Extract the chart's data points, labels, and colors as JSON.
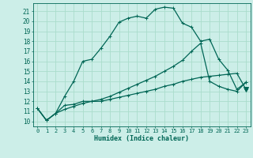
{
  "xlabel": "Humidex (Indice chaleur)",
  "bg_color": "#cceee8",
  "line_color": "#006655",
  "grid_color": "#aaddcc",
  "xlim": [
    -0.5,
    23.5
  ],
  "ylim": [
    9.5,
    21.8
  ],
  "xticks": [
    0,
    1,
    2,
    3,
    4,
    5,
    6,
    7,
    8,
    9,
    10,
    11,
    12,
    13,
    14,
    15,
    16,
    17,
    18,
    19,
    20,
    21,
    22,
    23
  ],
  "yticks": [
    10,
    11,
    12,
    13,
    14,
    15,
    16,
    17,
    18,
    19,
    20,
    21
  ],
  "curve1_x": [
    0,
    1,
    2,
    3,
    4,
    5,
    6,
    7,
    8,
    9,
    10,
    11,
    12,
    13,
    14,
    15,
    16,
    17,
    18,
    19,
    20,
    21,
    22,
    23
  ],
  "curve1_y": [
    11.3,
    10.1,
    10.8,
    12.5,
    14.0,
    16.0,
    16.2,
    17.3,
    18.5,
    19.9,
    20.3,
    20.5,
    20.3,
    21.2,
    21.4,
    21.3,
    19.8,
    19.4,
    18.0,
    18.2,
    16.2,
    15.1,
    13.2,
    13.9
  ],
  "curve2_x": [
    0,
    1,
    2,
    3,
    4,
    5,
    6,
    7,
    8,
    9,
    10,
    11,
    12,
    13,
    14,
    15,
    16,
    17,
    18,
    19,
    20,
    21,
    22,
    23
  ],
  "curve2_y": [
    11.3,
    10.1,
    10.8,
    11.6,
    11.7,
    12.0,
    12.0,
    12.0,
    12.2,
    12.4,
    12.6,
    12.8,
    13.0,
    13.2,
    13.5,
    13.7,
    14.0,
    14.2,
    14.4,
    14.5,
    14.6,
    14.7,
    14.8,
    13.2
  ],
  "curve3_x": [
    0,
    1,
    2,
    3,
    4,
    5,
    6,
    7,
    8,
    9,
    10,
    11,
    12,
    13,
    14,
    15,
    16,
    17,
    18,
    19,
    20,
    21,
    22,
    23
  ],
  "curve3_y": [
    11.3,
    10.1,
    10.8,
    11.2,
    11.5,
    11.8,
    12.0,
    12.2,
    12.5,
    12.9,
    13.3,
    13.7,
    14.1,
    14.5,
    15.0,
    15.5,
    16.1,
    17.0,
    17.8,
    14.0,
    13.5,
    13.2,
    13.0,
    13.9
  ],
  "tri_x": 23,
  "tri_y": 13.2,
  "marker_style": "+",
  "marker_size": 3,
  "linewidth": 0.9
}
